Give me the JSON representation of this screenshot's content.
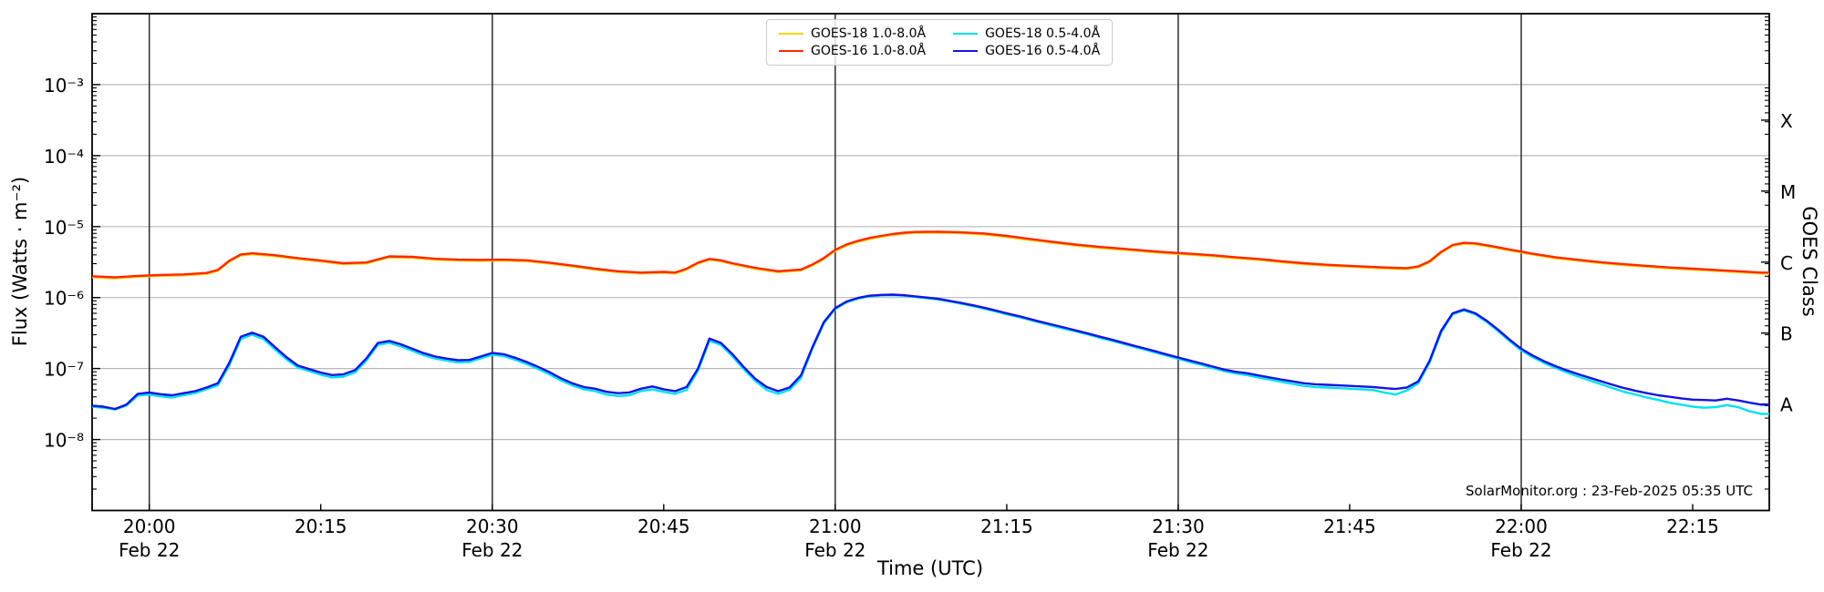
{
  "chart_data": {
    "type": "line",
    "title": "",
    "xlabel": "Time (UTC)",
    "ylabel": "Flux (Watts · m⁻²)",
    "y2label": "GOES Class",
    "annotation": "SolarMonitor.org : 23-Feb-2025 05:35 UTC",
    "x_axis": {
      "unit": "minutes since 19:55 UTC on 22-Feb-2025",
      "t_min": 0,
      "t_max": 146.7,
      "ticks": [
        {
          "t": 5,
          "label": "20:00",
          "date": "Feb 22"
        },
        {
          "t": 20,
          "label": "20:15"
        },
        {
          "t": 35,
          "label": "20:30",
          "date": "Feb 22"
        },
        {
          "t": 50,
          "label": "20:45"
        },
        {
          "t": 65,
          "label": "21:00",
          "date": "Feb 22"
        },
        {
          "t": 80,
          "label": "21:15"
        },
        {
          "t": 95,
          "label": "21:30",
          "date": "Feb 22"
        },
        {
          "t": 110,
          "label": "21:45"
        },
        {
          "t": 125,
          "label": "22:00",
          "date": "Feb 22"
        },
        {
          "t": 140,
          "label": "22:15"
        }
      ],
      "gridline_ts": [
        5,
        35,
        65,
        95,
        125
      ]
    },
    "y_axis": {
      "scale": "log",
      "min": 1e-09,
      "max": 0.01,
      "ticks": [
        {
          "exp": -3,
          "label": "10⁻³"
        },
        {
          "exp": -4,
          "label": "10⁻⁴"
        },
        {
          "exp": -5,
          "label": "10⁻⁵"
        },
        {
          "exp": -6,
          "label": "10⁻⁶"
        },
        {
          "exp": -7,
          "label": "10⁻⁷"
        },
        {
          "exp": -8,
          "label": "10⁻⁸"
        }
      ]
    },
    "y2_axis": {
      "classes": [
        {
          "label": "X",
          "exp": -3.5
        },
        {
          "label": "M",
          "exp": -4.5
        },
        {
          "label": "C",
          "exp": -5.5
        },
        {
          "label": "B",
          "exp": -6.5
        },
        {
          "label": "A",
          "exp": -7.5
        }
      ]
    },
    "colors": {
      "grid_horizontal": "#b8b8b8",
      "grid_vertical": "#2e2e2e",
      "frame": "#000000",
      "goes18_long": "#ffd100",
      "goes16_long": "#ff2800",
      "goes18_short": "#00e1f2",
      "goes16_short": "#1414e0"
    },
    "legend_position": "top-center",
    "grid": true,
    "draw_order": [
      "goes18_long",
      "goes16_long",
      "goes18_short",
      "goes16_short"
    ],
    "series": [
      {
        "id": "goes18_long",
        "label": "GOES-18 1.0-8.0Å",
        "color": "#ffd100",
        "scale": 1e-06,
        "points": [
          [
            0,
            1.94
          ],
          [
            2,
            1.87
          ],
          [
            4,
            1.96
          ],
          [
            6,
            2.02
          ],
          [
            8,
            2.06
          ],
          [
            10,
            2.15
          ],
          [
            11,
            2.38
          ],
          [
            12,
            3.2
          ],
          [
            13,
            3.93
          ],
          [
            14,
            4.07
          ],
          [
            16,
            3.83
          ],
          [
            18,
            3.49
          ],
          [
            20,
            3.22
          ],
          [
            22,
            2.96
          ],
          [
            24,
            3.03
          ],
          [
            25,
            3.35
          ],
          [
            26,
            3.69
          ],
          [
            28,
            3.64
          ],
          [
            30,
            3.41
          ],
          [
            32,
            3.32
          ],
          [
            34,
            3.3
          ],
          [
            36,
            3.32
          ],
          [
            38,
            3.25
          ],
          [
            40,
            3.01
          ],
          [
            42,
            2.74
          ],
          [
            44,
            2.47
          ],
          [
            46,
            2.28
          ],
          [
            48,
            2.18
          ],
          [
            50,
            2.23
          ],
          [
            51,
            2.18
          ],
          [
            52,
            2.47
          ],
          [
            53,
            3.01
          ],
          [
            54,
            3.4
          ],
          [
            55,
            3.25
          ],
          [
            56,
            2.96
          ],
          [
            58,
            2.54
          ],
          [
            60,
            2.28
          ],
          [
            62,
            2.41
          ],
          [
            63,
            2.83
          ],
          [
            64,
            3.49
          ],
          [
            65,
            4.56
          ],
          [
            66,
            5.43
          ],
          [
            67,
            6.11
          ],
          [
            68,
            6.69
          ],
          [
            69,
            7.18
          ],
          [
            70,
            7.61
          ],
          [
            71,
            7.95
          ],
          [
            72,
            8.15
          ],
          [
            73,
            8.2
          ],
          [
            74,
            8.2
          ],
          [
            75,
            8.15
          ],
          [
            76,
            8.05
          ],
          [
            78,
            7.76
          ],
          [
            80,
            7.18
          ],
          [
            82,
            6.5
          ],
          [
            84,
            5.92
          ],
          [
            86,
            5.43
          ],
          [
            88,
            5.04
          ],
          [
            90,
            4.75
          ],
          [
            92,
            4.46
          ],
          [
            94,
            4.22
          ],
          [
            96,
            4.03
          ],
          [
            98,
            3.83
          ],
          [
            100,
            3.59
          ],
          [
            102,
            3.4
          ],
          [
            104,
            3.15
          ],
          [
            106,
            2.96
          ],
          [
            108,
            2.81
          ],
          [
            110,
            2.72
          ],
          [
            112,
            2.62
          ],
          [
            114,
            2.54
          ],
          [
            115,
            2.52
          ],
          [
            116,
            2.67
          ],
          [
            117,
            3.15
          ],
          [
            118,
            4.27
          ],
          [
            119,
            5.34
          ],
          [
            120,
            5.72
          ],
          [
            121,
            5.63
          ],
          [
            122,
            5.29
          ],
          [
            123,
            4.95
          ],
          [
            124,
            4.61
          ],
          [
            125,
            4.32
          ],
          [
            126,
            4.03
          ],
          [
            128,
            3.59
          ],
          [
            130,
            3.3
          ],
          [
            132,
            3.06
          ],
          [
            134,
            2.86
          ],
          [
            136,
            2.72
          ],
          [
            138,
            2.57
          ],
          [
            140,
            2.47
          ],
          [
            142,
            2.38
          ],
          [
            144,
            2.28
          ],
          [
            146,
            2.18
          ]
        ]
      },
      {
        "id": "goes16_long",
        "label": "GOES-16 1.0-8.0Å",
        "color": "#ff2800",
        "scale": 1e-06,
        "points": [
          [
            0,
            2.0
          ],
          [
            2,
            1.93
          ],
          [
            4,
            2.02
          ],
          [
            6,
            2.08
          ],
          [
            8,
            2.12
          ],
          [
            10,
            2.22
          ],
          [
            11,
            2.45
          ],
          [
            12,
            3.3
          ],
          [
            13,
            4.05
          ],
          [
            14,
            4.2
          ],
          [
            16,
            3.95
          ],
          [
            18,
            3.6
          ],
          [
            20,
            3.32
          ],
          [
            22,
            3.05
          ],
          [
            24,
            3.12
          ],
          [
            25,
            3.45
          ],
          [
            26,
            3.8
          ],
          [
            28,
            3.75
          ],
          [
            30,
            3.52
          ],
          [
            32,
            3.42
          ],
          [
            34,
            3.4
          ],
          [
            36,
            3.42
          ],
          [
            38,
            3.35
          ],
          [
            40,
            3.1
          ],
          [
            42,
            2.82
          ],
          [
            44,
            2.55
          ],
          [
            46,
            2.35
          ],
          [
            48,
            2.25
          ],
          [
            50,
            2.3
          ],
          [
            51,
            2.25
          ],
          [
            52,
            2.55
          ],
          [
            53,
            3.1
          ],
          [
            54,
            3.5
          ],
          [
            55,
            3.35
          ],
          [
            56,
            3.05
          ],
          [
            58,
            2.62
          ],
          [
            60,
            2.35
          ],
          [
            62,
            2.48
          ],
          [
            63,
            2.92
          ],
          [
            64,
            3.6
          ],
          [
            65,
            4.7
          ],
          [
            66,
            5.6
          ],
          [
            67,
            6.3
          ],
          [
            68,
            6.9
          ],
          [
            69,
            7.4
          ],
          [
            70,
            7.85
          ],
          [
            71,
            8.2
          ],
          [
            72,
            8.4
          ],
          [
            73,
            8.45
          ],
          [
            74,
            8.45
          ],
          [
            75,
            8.4
          ],
          [
            76,
            8.3
          ],
          [
            78,
            8.0
          ],
          [
            80,
            7.4
          ],
          [
            82,
            6.7
          ],
          [
            84,
            6.1
          ],
          [
            86,
            5.6
          ],
          [
            88,
            5.2
          ],
          [
            90,
            4.9
          ],
          [
            92,
            4.6
          ],
          [
            94,
            4.35
          ],
          [
            96,
            4.15
          ],
          [
            98,
            3.95
          ],
          [
            100,
            3.7
          ],
          [
            102,
            3.5
          ],
          [
            104,
            3.25
          ],
          [
            106,
            3.05
          ],
          [
            108,
            2.9
          ],
          [
            110,
            2.8
          ],
          [
            112,
            2.7
          ],
          [
            114,
            2.62
          ],
          [
            115,
            2.6
          ],
          [
            116,
            2.75
          ],
          [
            117,
            3.25
          ],
          [
            118,
            4.4
          ],
          [
            119,
            5.5
          ],
          [
            120,
            5.9
          ],
          [
            121,
            5.8
          ],
          [
            122,
            5.45
          ],
          [
            123,
            5.1
          ],
          [
            124,
            4.75
          ],
          [
            125,
            4.45
          ],
          [
            126,
            4.15
          ],
          [
            128,
            3.7
          ],
          [
            130,
            3.4
          ],
          [
            132,
            3.15
          ],
          [
            134,
            2.95
          ],
          [
            136,
            2.8
          ],
          [
            138,
            2.65
          ],
          [
            140,
            2.55
          ],
          [
            142,
            2.45
          ],
          [
            144,
            2.35
          ],
          [
            146,
            2.25
          ]
        ]
      },
      {
        "id": "goes18_short",
        "label": "GOES-18 0.5-4.0Å",
        "color": "#00e1f2",
        "scale": 1e-08,
        "t0": 0,
        "dt": 1,
        "values": [
          2.9,
          2.8,
          2.65,
          3.0,
          4.15,
          4.3,
          4.05,
          3.9,
          4.2,
          4.5,
          5.1,
          5.8,
          11,
          26,
          30,
          26,
          18.5,
          13.5,
          10.3,
          9.2,
          8.2,
          7.5,
          7.7,
          8.8,
          13,
          21.5,
          23,
          20.5,
          17.8,
          15.4,
          13.8,
          12.9,
          12.2,
          12.4,
          13.9,
          15.6,
          15.0,
          13.3,
          11.6,
          9.9,
          8.3,
          6.8,
          5.8,
          5.1,
          4.8,
          4.3,
          4.1,
          4.2,
          4.8,
          5.1,
          4.7,
          4.4,
          5.0,
          9.3,
          24.5,
          21.5,
          14.9,
          9.8,
          6.7,
          5.0,
          4.4,
          5.0,
          7.3,
          19,
          43,
          69,
          86,
          97,
          104,
          107,
          108,
          106,
          102,
          98,
          94,
          88,
          82,
          76,
          70,
          64,
          58,
          53.5,
          48.5,
          44,
          40,
          36.5,
          33.5,
          30.5,
          27.5,
          25,
          22.7,
          20.5,
          18.6,
          16.8,
          15.2,
          13.7,
          12.4,
          11.3,
          10.2,
          9.2,
          8.5,
          8.1,
          7.5,
          7.0,
          6.5,
          6.1,
          5.7,
          5.5,
          5.4,
          5.3,
          5.2,
          5.1,
          5.0,
          4.6,
          4.3,
          4.9,
          6.2,
          12.2,
          32,
          58,
          66,
          58,
          45,
          33.5,
          24.3,
          18,
          14.5,
          12,
          10.2,
          8.8,
          7.7,
          6.8,
          6.0,
          5.3,
          4.7,
          4.3,
          3.9,
          3.6,
          3.3,
          3.1,
          2.9,
          2.8,
          2.85,
          3.05,
          2.85,
          2.5,
          2.3
        ]
      },
      {
        "id": "goes16_short",
        "label": "GOES-16 0.5-4.0Å",
        "color": "#1414e0",
        "scale": 1e-08,
        "t0": 0,
        "dt": 1,
        "values": [
          3.0,
          2.9,
          2.7,
          3.1,
          4.4,
          4.6,
          4.35,
          4.2,
          4.5,
          4.8,
          5.4,
          6.2,
          12,
          28,
          32,
          28,
          20,
          14.5,
          11,
          9.8,
          8.8,
          8.1,
          8.3,
          9.5,
          14,
          23,
          24.5,
          22,
          19,
          16.5,
          14.8,
          13.8,
          13.1,
          13.2,
          14.8,
          16.6,
          15.9,
          14.2,
          12.4,
          10.6,
          8.9,
          7.3,
          6.2,
          5.5,
          5.2,
          4.7,
          4.5,
          4.6,
          5.2,
          5.6,
          5.1,
          4.8,
          5.5,
          10,
          26.5,
          23,
          16,
          10.5,
          7.2,
          5.5,
          4.8,
          5.4,
          8.0,
          20,
          45,
          71,
          88,
          99,
          106,
          109,
          110,
          108,
          104,
          100,
          96,
          90,
          84,
          78,
          72,
          66,
          60,
          55,
          50,
          45.5,
          41.5,
          38,
          34.5,
          31.5,
          28.5,
          26,
          23.5,
          21.3,
          19.3,
          17.5,
          15.8,
          14.3,
          13,
          11.8,
          10.7,
          9.7,
          9.0,
          8.6,
          8.0,
          7.5,
          7.0,
          6.6,
          6.2,
          6.0,
          5.9,
          5.8,
          5.7,
          5.6,
          5.5,
          5.3,
          5.15,
          5.4,
          6.6,
          13,
          34,
          60,
          68,
          60,
          47,
          35,
          25.5,
          19,
          15.3,
          12.7,
          10.8,
          9.4,
          8.3,
          7.4,
          6.6,
          5.9,
          5.3,
          4.85,
          4.5,
          4.2,
          4.0,
          3.8,
          3.65,
          3.6,
          3.55,
          3.75,
          3.55,
          3.3,
          3.1
        ]
      }
    ]
  }
}
